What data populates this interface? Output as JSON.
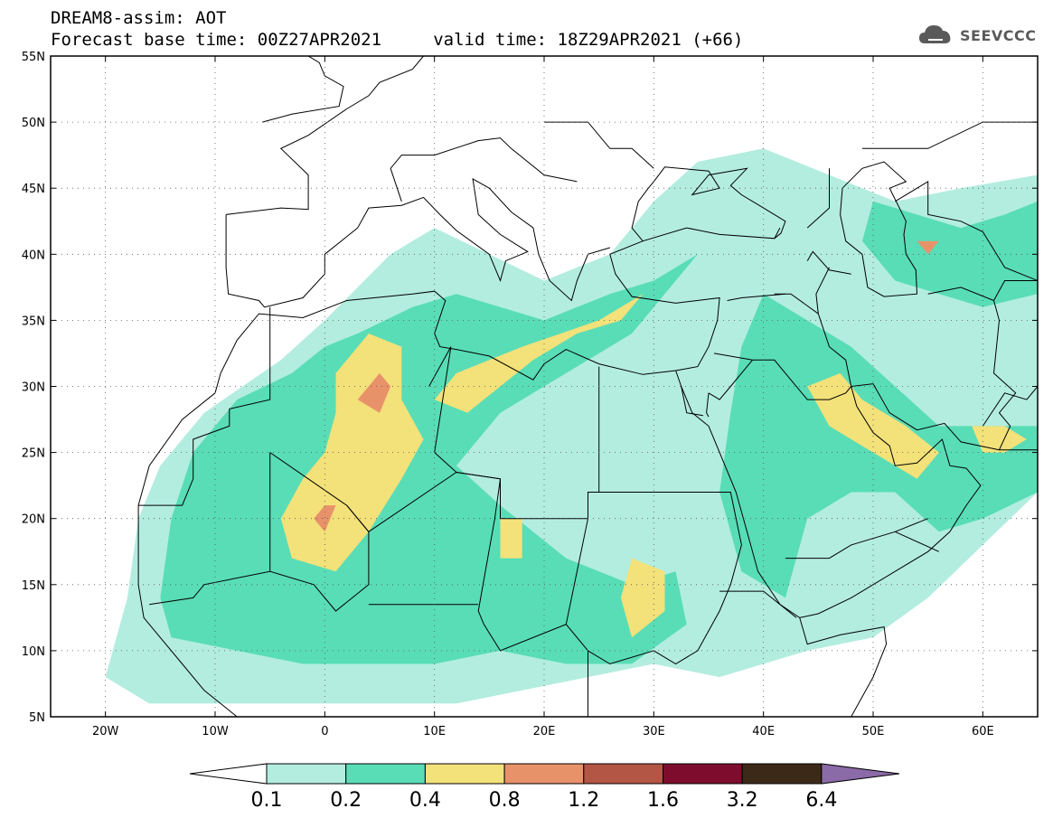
{
  "title": {
    "line1": "DREAM8-assim: AOT",
    "line2": "Forecast base time: 00Z27APR2021     valid time: 18Z29APR2021 (+66)"
  },
  "logo": {
    "text": "SEEVCCC",
    "icon": "cloud-icon"
  },
  "map": {
    "lon_range": [
      -25,
      65
    ],
    "lat_range": [
      5,
      55
    ],
    "lon_ticks": [
      {
        "value": -20,
        "label": "20W"
      },
      {
        "value": -10,
        "label": "10W"
      },
      {
        "value": 0,
        "label": "0"
      },
      {
        "value": 10,
        "label": "10E"
      },
      {
        "value": 20,
        "label": "20E"
      },
      {
        "value": 30,
        "label": "30E"
      },
      {
        "value": 40,
        "label": "40E"
      },
      {
        "value": 50,
        "label": "50E"
      },
      {
        "value": 60,
        "label": "60E"
      }
    ],
    "lat_ticks": [
      {
        "value": 5,
        "label": "5N"
      },
      {
        "value": 10,
        "label": "10N"
      },
      {
        "value": 15,
        "label": "15N"
      },
      {
        "value": 20,
        "label": "20N"
      },
      {
        "value": 25,
        "label": "25N"
      },
      {
        "value": 30,
        "label": "30N"
      },
      {
        "value": 35,
        "label": "35N"
      },
      {
        "value": 40,
        "label": "40N"
      },
      {
        "value": 45,
        "label": "45N"
      },
      {
        "value": 50,
        "label": "50N"
      },
      {
        "value": 55,
        "label": "55N"
      }
    ],
    "grid": "dotted"
  },
  "colorbar": {
    "colors": [
      "#b3ede0",
      "#59ddb6",
      "#f3e17a",
      "#e8926a",
      "#b45646",
      "#7e0d2d",
      "#3d2918",
      "#8b6aa8"
    ],
    "labels": [
      "0.1",
      "0.2",
      "0.4",
      "0.8",
      "1.2",
      "1.6",
      "3.2",
      "6.4"
    ]
  },
  "fields": {
    "aot_0_1": [
      [
        -20,
        8
      ],
      [
        -18,
        14
      ],
      [
        -17,
        20
      ],
      [
        -15,
        24
      ],
      [
        -11,
        28
      ],
      [
        -4,
        32
      ],
      [
        0,
        35
      ],
      [
        6,
        40
      ],
      [
        10,
        42
      ],
      [
        15,
        40
      ],
      [
        20,
        38
      ],
      [
        26,
        40
      ],
      [
        30,
        44
      ],
      [
        34,
        47
      ],
      [
        40,
        48
      ],
      [
        46,
        46
      ],
      [
        52,
        44
      ],
      [
        58,
        45
      ],
      [
        65,
        46
      ],
      [
        65,
        22
      ],
      [
        60,
        18
      ],
      [
        55,
        14
      ],
      [
        50,
        11
      ],
      [
        44,
        10
      ],
      [
        40,
        9
      ],
      [
        36,
        8
      ],
      [
        30,
        9
      ],
      [
        24,
        8
      ],
      [
        18,
        7
      ],
      [
        12,
        6
      ],
      [
        6,
        6
      ],
      [
        0,
        6
      ],
      [
        -8,
        6
      ],
      [
        -16,
        6
      ]
    ],
    "aot_0_2": [
      [
        -15,
        14
      ],
      [
        -14,
        20
      ],
      [
        -12,
        25
      ],
      [
        -8,
        29
      ],
      [
        -3,
        31
      ],
      [
        0,
        33
      ],
      [
        3,
        34
      ],
      [
        8,
        36
      ],
      [
        12,
        37
      ],
      [
        16,
        36
      ],
      [
        20,
        35
      ],
      [
        26,
        37
      ],
      [
        30,
        38
      ],
      [
        34,
        40
      ],
      [
        28,
        34
      ],
      [
        22,
        31
      ],
      [
        16,
        28
      ],
      [
        12,
        24
      ],
      [
        16,
        21
      ],
      [
        22,
        17
      ],
      [
        28,
        15
      ],
      [
        32,
        16
      ],
      [
        33,
        12
      ],
      [
        28,
        9
      ],
      [
        22,
        9
      ],
      [
        16,
        10
      ],
      [
        10,
        9
      ],
      [
        4,
        9
      ],
      [
        -2,
        9
      ],
      [
        -8,
        10
      ],
      [
        -14,
        11
      ]
    ],
    "aot_0_2b": [
      [
        40,
        37
      ],
      [
        44,
        35
      ],
      [
        48,
        33
      ],
      [
        52,
        30
      ],
      [
        56,
        27
      ],
      [
        62,
        27
      ],
      [
        65,
        27
      ],
      [
        65,
        22
      ],
      [
        60,
        20
      ],
      [
        56,
        19
      ],
      [
        52,
        22
      ],
      [
        48,
        22
      ],
      [
        44,
        20
      ],
      [
        42,
        14
      ],
      [
        38,
        16
      ],
      [
        36,
        22
      ],
      [
        37,
        28
      ],
      [
        38,
        33
      ]
    ],
    "aot_0_2c": [
      [
        50,
        44
      ],
      [
        54,
        43
      ],
      [
        58,
        42
      ],
      [
        62,
        43
      ],
      [
        65,
        44
      ],
      [
        65,
        37
      ],
      [
        60,
        36
      ],
      [
        56,
        37
      ],
      [
        52,
        38
      ],
      [
        49,
        41
      ]
    ],
    "aot_0_4": [
      [
        -2,
        23
      ],
      [
        -4,
        20
      ],
      [
        -3,
        17
      ],
      [
        1,
        16
      ],
      [
        4,
        19
      ],
      [
        7,
        23
      ],
      [
        9,
        26
      ],
      [
        7,
        29
      ],
      [
        7,
        33
      ],
      [
        4,
        34
      ],
      [
        1,
        31
      ],
      [
        1,
        28
      ],
      [
        0,
        25
      ]
    ],
    "aot_0_4b": [
      [
        10,
        29
      ],
      [
        12,
        31
      ],
      [
        15,
        32
      ],
      [
        18,
        33
      ],
      [
        25,
        35
      ],
      [
        29,
        37
      ],
      [
        27,
        35
      ],
      [
        23,
        34
      ],
      [
        19,
        32
      ],
      [
        16,
        30
      ],
      [
        13,
        28
      ]
    ],
    "aot_0_4c": [
      [
        16,
        20
      ],
      [
        18,
        20
      ],
      [
        18,
        17
      ],
      [
        16,
        17
      ]
    ],
    "aot_0_4d": [
      [
        28,
        17
      ],
      [
        31,
        16
      ],
      [
        31,
        13
      ],
      [
        28,
        11
      ],
      [
        27,
        14
      ]
    ],
    "aot_0_4e": [
      [
        44,
        30
      ],
      [
        47,
        31
      ],
      [
        49,
        29
      ],
      [
        53,
        27
      ],
      [
        56,
        25
      ],
      [
        54,
        23
      ],
      [
        50,
        25
      ],
      [
        46,
        27
      ]
    ],
    "aot_0_4f": [
      [
        59,
        27
      ],
      [
        62,
        27
      ],
      [
        64,
        26
      ],
      [
        62,
        25
      ],
      [
        60,
        25
      ]
    ],
    "aot_0_8": [
      [
        3,
        29
      ],
      [
        5,
        31
      ],
      [
        6,
        30
      ],
      [
        5,
        28
      ]
    ],
    "aot_0_8b": [
      [
        -1,
        20
      ],
      [
        0,
        21
      ],
      [
        1,
        21
      ],
      [
        0,
        19
      ]
    ],
    "aot_0_8c": [
      [
        54,
        41
      ],
      [
        56,
        41
      ],
      [
        55,
        40
      ]
    ]
  }
}
